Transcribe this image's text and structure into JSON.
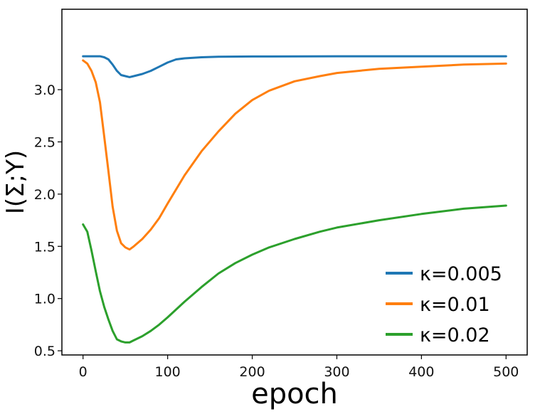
{
  "chart_data": {
    "type": "line",
    "xlabel": "epoch",
    "ylabel": "I(Σ;Y)",
    "xlim": [
      -25,
      525
    ],
    "ylim": [
      0.46,
      3.77
    ],
    "x_ticks": [
      0,
      100,
      200,
      300,
      400,
      500
    ],
    "x_tick_labels": [
      "0",
      "100",
      "200",
      "300",
      "400",
      "500"
    ],
    "y_ticks": [
      0.5,
      1.0,
      1.5,
      2.0,
      2.5,
      3.0
    ],
    "y_tick_labels": [
      "0.5",
      "1.0",
      "1.5",
      "2.0",
      "2.5",
      "3.0"
    ],
    "grid": false,
    "legend_position": "bottom-right",
    "series": [
      {
        "name": "κ=0.005",
        "color": "#1f77b4",
        "x": [
          0,
          10,
          20,
          25,
          30,
          35,
          40,
          45,
          50,
          55,
          60,
          70,
          80,
          90,
          100,
          110,
          120,
          140,
          160,
          200,
          300,
          400,
          500
        ],
        "y": [
          3.32,
          3.32,
          3.32,
          3.31,
          3.29,
          3.24,
          3.18,
          3.14,
          3.13,
          3.12,
          3.13,
          3.15,
          3.18,
          3.22,
          3.26,
          3.29,
          3.3,
          3.31,
          3.315,
          3.318,
          3.32,
          3.32,
          3.32
        ]
      },
      {
        "name": "κ=0.01",
        "color": "#ff7f0e",
        "x": [
          0,
          5,
          10,
          15,
          20,
          25,
          30,
          35,
          40,
          45,
          50,
          55,
          60,
          70,
          80,
          90,
          100,
          120,
          140,
          160,
          180,
          200,
          220,
          250,
          280,
          300,
          350,
          400,
          450,
          500
        ],
        "y": [
          3.28,
          3.25,
          3.18,
          3.07,
          2.88,
          2.55,
          2.22,
          1.88,
          1.65,
          1.53,
          1.49,
          1.47,
          1.5,
          1.57,
          1.66,
          1.77,
          1.91,
          2.18,
          2.41,
          2.6,
          2.77,
          2.9,
          2.99,
          3.08,
          3.13,
          3.16,
          3.2,
          3.22,
          3.24,
          3.25
        ]
      },
      {
        "name": "κ=0.02",
        "color": "#2ca02c",
        "x": [
          0,
          5,
          10,
          15,
          20,
          25,
          30,
          35,
          40,
          45,
          50,
          55,
          60,
          70,
          80,
          90,
          100,
          120,
          140,
          160,
          180,
          200,
          220,
          250,
          280,
          300,
          350,
          400,
          450,
          500
        ],
        "y": [
          1.71,
          1.64,
          1.46,
          1.26,
          1.07,
          0.92,
          0.8,
          0.69,
          0.61,
          0.59,
          0.58,
          0.58,
          0.6,
          0.64,
          0.69,
          0.75,
          0.82,
          0.97,
          1.11,
          1.24,
          1.34,
          1.42,
          1.49,
          1.57,
          1.64,
          1.68,
          1.75,
          1.81,
          1.86,
          1.89
        ]
      }
    ]
  }
}
